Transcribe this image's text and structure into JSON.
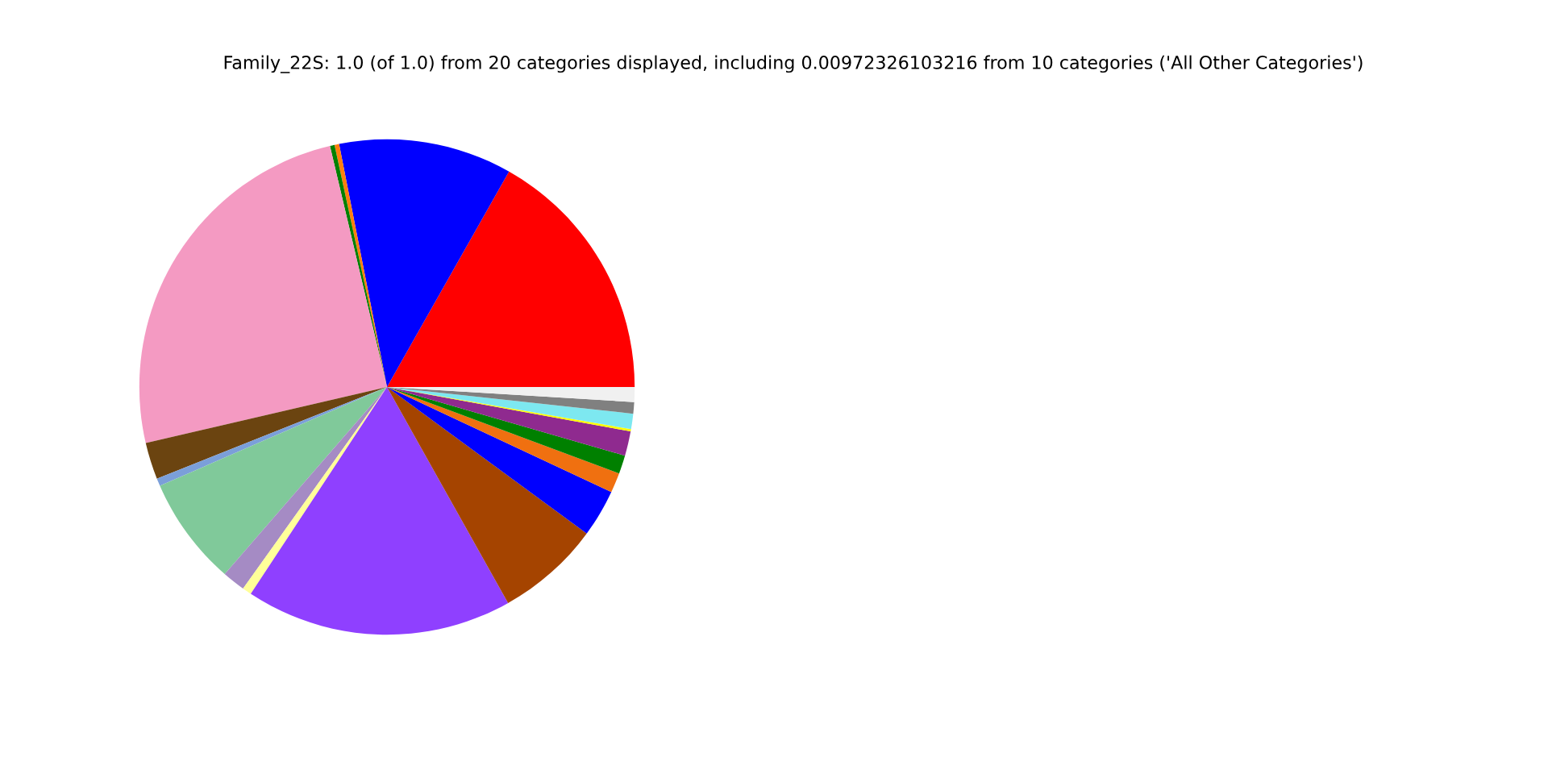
{
  "chart_data": {
    "type": "pie",
    "title": "Family_22S: 1.0 (of 1.0) from 20 categories displayed, including 0.00972326103216 from 10 categories ('All Other Categories')",
    "categories": [
      null,
      null,
      null,
      null,
      null,
      null,
      null,
      null,
      null,
      null,
      null,
      null,
      null,
      null,
      null,
      null,
      null,
      null,
      null,
      null
    ],
    "values": [
      16.8,
      11.3,
      0.3,
      0.3,
      24.93,
      2.4,
      0.5,
      7.1,
      1.5,
      0.6,
      17.4,
      6.8,
      3.1,
      1.3,
      1.2,
      1.6,
      0.15,
      1.0,
      0.75,
      0.97
    ],
    "colors": [
      "#ff0000",
      "#0000ff",
      "#ff7f0e",
      "#008000",
      "#f49ac2",
      "#6b4410",
      "#7b9fd9",
      "#80c99a",
      "#a58bc4",
      "#ffff99",
      "#8f40ff",
      "#a54400",
      "#0000ff",
      "#f07010",
      "#008000",
      "#8f2a8f",
      "#ffff00",
      "#7de8f0",
      "#808080",
      "#f0f0f0"
    ]
  }
}
